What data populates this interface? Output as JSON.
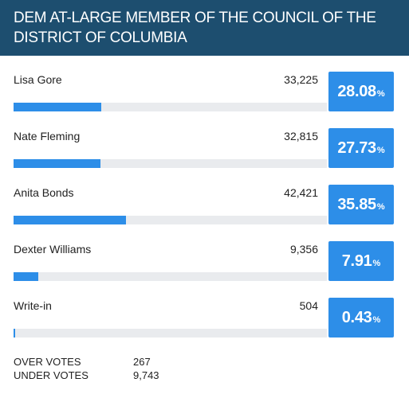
{
  "header": {
    "title": "DEM AT-LARGE MEMBER OF THE COUNCIL OF THE DISTRICT OF COLUMBIA"
  },
  "candidates": [
    {
      "name": "Lisa Gore",
      "votes": "33,225",
      "percent": "28.08",
      "percent_sign": "%",
      "share": 28.08
    },
    {
      "name": "Nate Fleming",
      "votes": "32,815",
      "percent": "27.73",
      "percent_sign": "%",
      "share": 27.73
    },
    {
      "name": "Anita Bonds",
      "votes": "42,421",
      "percent": "35.85",
      "percent_sign": "%",
      "share": 35.85
    },
    {
      "name": "Dexter Williams",
      "votes": "9,356",
      "percent": "7.91",
      "percent_sign": "%",
      "share": 7.91
    },
    {
      "name": "Write-in",
      "votes": "504",
      "percent": "0.43",
      "percent_sign": "%",
      "share": 0.43
    }
  ],
  "summary": {
    "over_votes_label": "OVER VOTES",
    "over_votes_value": "267",
    "under_votes_label": "UNDER VOTES",
    "under_votes_value": "9,743"
  },
  "colors": {
    "header_bg": "#1d4e6f",
    "accent": "#2d8ee8",
    "bar_track": "#e9ebee"
  }
}
